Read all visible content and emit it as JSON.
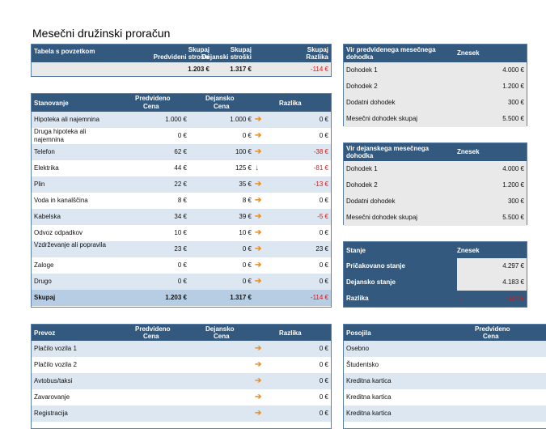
{
  "title": "Mesečni družinski proračun",
  "colors": {
    "header": "#34597e",
    "alt_row": "#dde7f2",
    "negative": "#d21b1b",
    "arrow_right": "#e8902a",
    "arrow_down": "#d52020"
  },
  "summary": {
    "label": "Tabela s povzetkom",
    "col1": [
      "Skupaj",
      "Predvideni stroški"
    ],
    "col2": [
      "Skupaj",
      "Dejanski stroški"
    ],
    "col3": [
      "Skupaj",
      "Razlika"
    ],
    "v1": "1.203 €",
    "v2": "1.317 €",
    "v3": "-114 €"
  },
  "housing": {
    "label": "Stanovanje",
    "col1": [
      "Predvideno",
      "Cena"
    ],
    "col2": [
      "Dejansko",
      "Cena"
    ],
    "col3": "Razlika",
    "rows": [
      {
        "name": "Hipoteka ali najemnina",
        "pred": "1.000 €",
        "dej": "1.000 €",
        "arrow": "right",
        "diff": "0 €"
      },
      {
        "name": "Druga hipoteka ali najemnina",
        "pred": "0 €",
        "dej": "0 €",
        "arrow": "right",
        "diff": "0 €"
      },
      {
        "name": "Telefon",
        "pred": "62 €",
        "dej": "100 €",
        "arrow": "right",
        "diff": "-38 €"
      },
      {
        "name": "Elektrika",
        "pred": "44 €",
        "dej": "125 €",
        "arrow": "down",
        "diff": "-81 €"
      },
      {
        "name": "Plin",
        "pred": "22 €",
        "dej": "35 €",
        "arrow": "right",
        "diff": "-13 €"
      },
      {
        "name": "Voda in kanalščina",
        "pred": "8 €",
        "dej": "8 €",
        "arrow": "right",
        "diff": "0 €"
      },
      {
        "name": "Kabelska",
        "pred": "34 €",
        "dej": "39 €",
        "arrow": "right",
        "diff": "-5 €"
      },
      {
        "name": "Odvoz odpadkov",
        "pred": "10 €",
        "dej": "10 €",
        "arrow": "right",
        "diff": "0 €"
      },
      {
        "name": "Vzdrževanje ali popravila",
        "pred": "23 €",
        "dej": "0 €",
        "arrow": "right",
        "diff": "23 €"
      },
      {
        "name": "Zaloge",
        "pred": "0 €",
        "dej": "0 €",
        "arrow": "right",
        "diff": "0 €"
      },
      {
        "name": "Drugo",
        "pred": "0 €",
        "dej": "0 €",
        "arrow": "right",
        "diff": "0 €"
      }
    ],
    "total": {
      "name": "Skupaj",
      "pred": "1.203 €",
      "dej": "1.317 €",
      "diff": "-114 €"
    }
  },
  "planned_income": {
    "label": [
      "Vir predvidenega mesečnega",
      "dohodka"
    ],
    "col": "Znesek",
    "rows": [
      {
        "name": "Dohodek 1",
        "value": "4.000 €"
      },
      {
        "name": "Dohodek 2",
        "value": "1.200 €"
      },
      {
        "name": "Dodatni dohodek",
        "value": "300 €"
      },
      {
        "name": "Mesečni dohodek skupaj",
        "value": "5.500 €"
      }
    ]
  },
  "actual_income": {
    "label": [
      "Vir dejanskega mesečnega",
      "dohodka"
    ],
    "col": "Znesek",
    "rows": [
      {
        "name": "Dohodek 1",
        "value": "4.000 €"
      },
      {
        "name": "Dohodek 2",
        "value": "1.200 €"
      },
      {
        "name": "Dodatni dohodek",
        "value": "300 €"
      },
      {
        "name": "Mesečni dohodek skupaj",
        "value": "5.500 €"
      }
    ]
  },
  "balance": {
    "label": "Stanje",
    "col": "Znesek",
    "rows": [
      {
        "name": "Pričakovano stanje",
        "value": "4.297 €"
      },
      {
        "name": "Dejansko stanje",
        "value": "4.183 €"
      },
      {
        "name": "Razlika",
        "value": "-114 €"
      }
    ]
  },
  "transport": {
    "label": "Prevoz",
    "col1": [
      "Predvideno",
      "Cena"
    ],
    "col2": [
      "Dejansko",
      "Cena"
    ],
    "col3": "Razlika",
    "rows": [
      {
        "name": "Plačilo vozila 1",
        "diff": "0 €"
      },
      {
        "name": "Plačilo vozila 2",
        "diff": "0 €"
      },
      {
        "name": "Avtobus/taksi",
        "diff": "0 €"
      },
      {
        "name": "Zavarovanje",
        "diff": "0 €"
      },
      {
        "name": "Registracija",
        "diff": "0 €"
      }
    ]
  },
  "loans": {
    "label": "Posojila",
    "col1": [
      "Predvideno",
      "Cena"
    ],
    "rows": [
      {
        "name": "Osebno"
      },
      {
        "name": "Študentsko"
      },
      {
        "name": "Kreditna kartica"
      },
      {
        "name": "Kreditna kartica"
      },
      {
        "name": "Kreditna kartica"
      }
    ]
  }
}
